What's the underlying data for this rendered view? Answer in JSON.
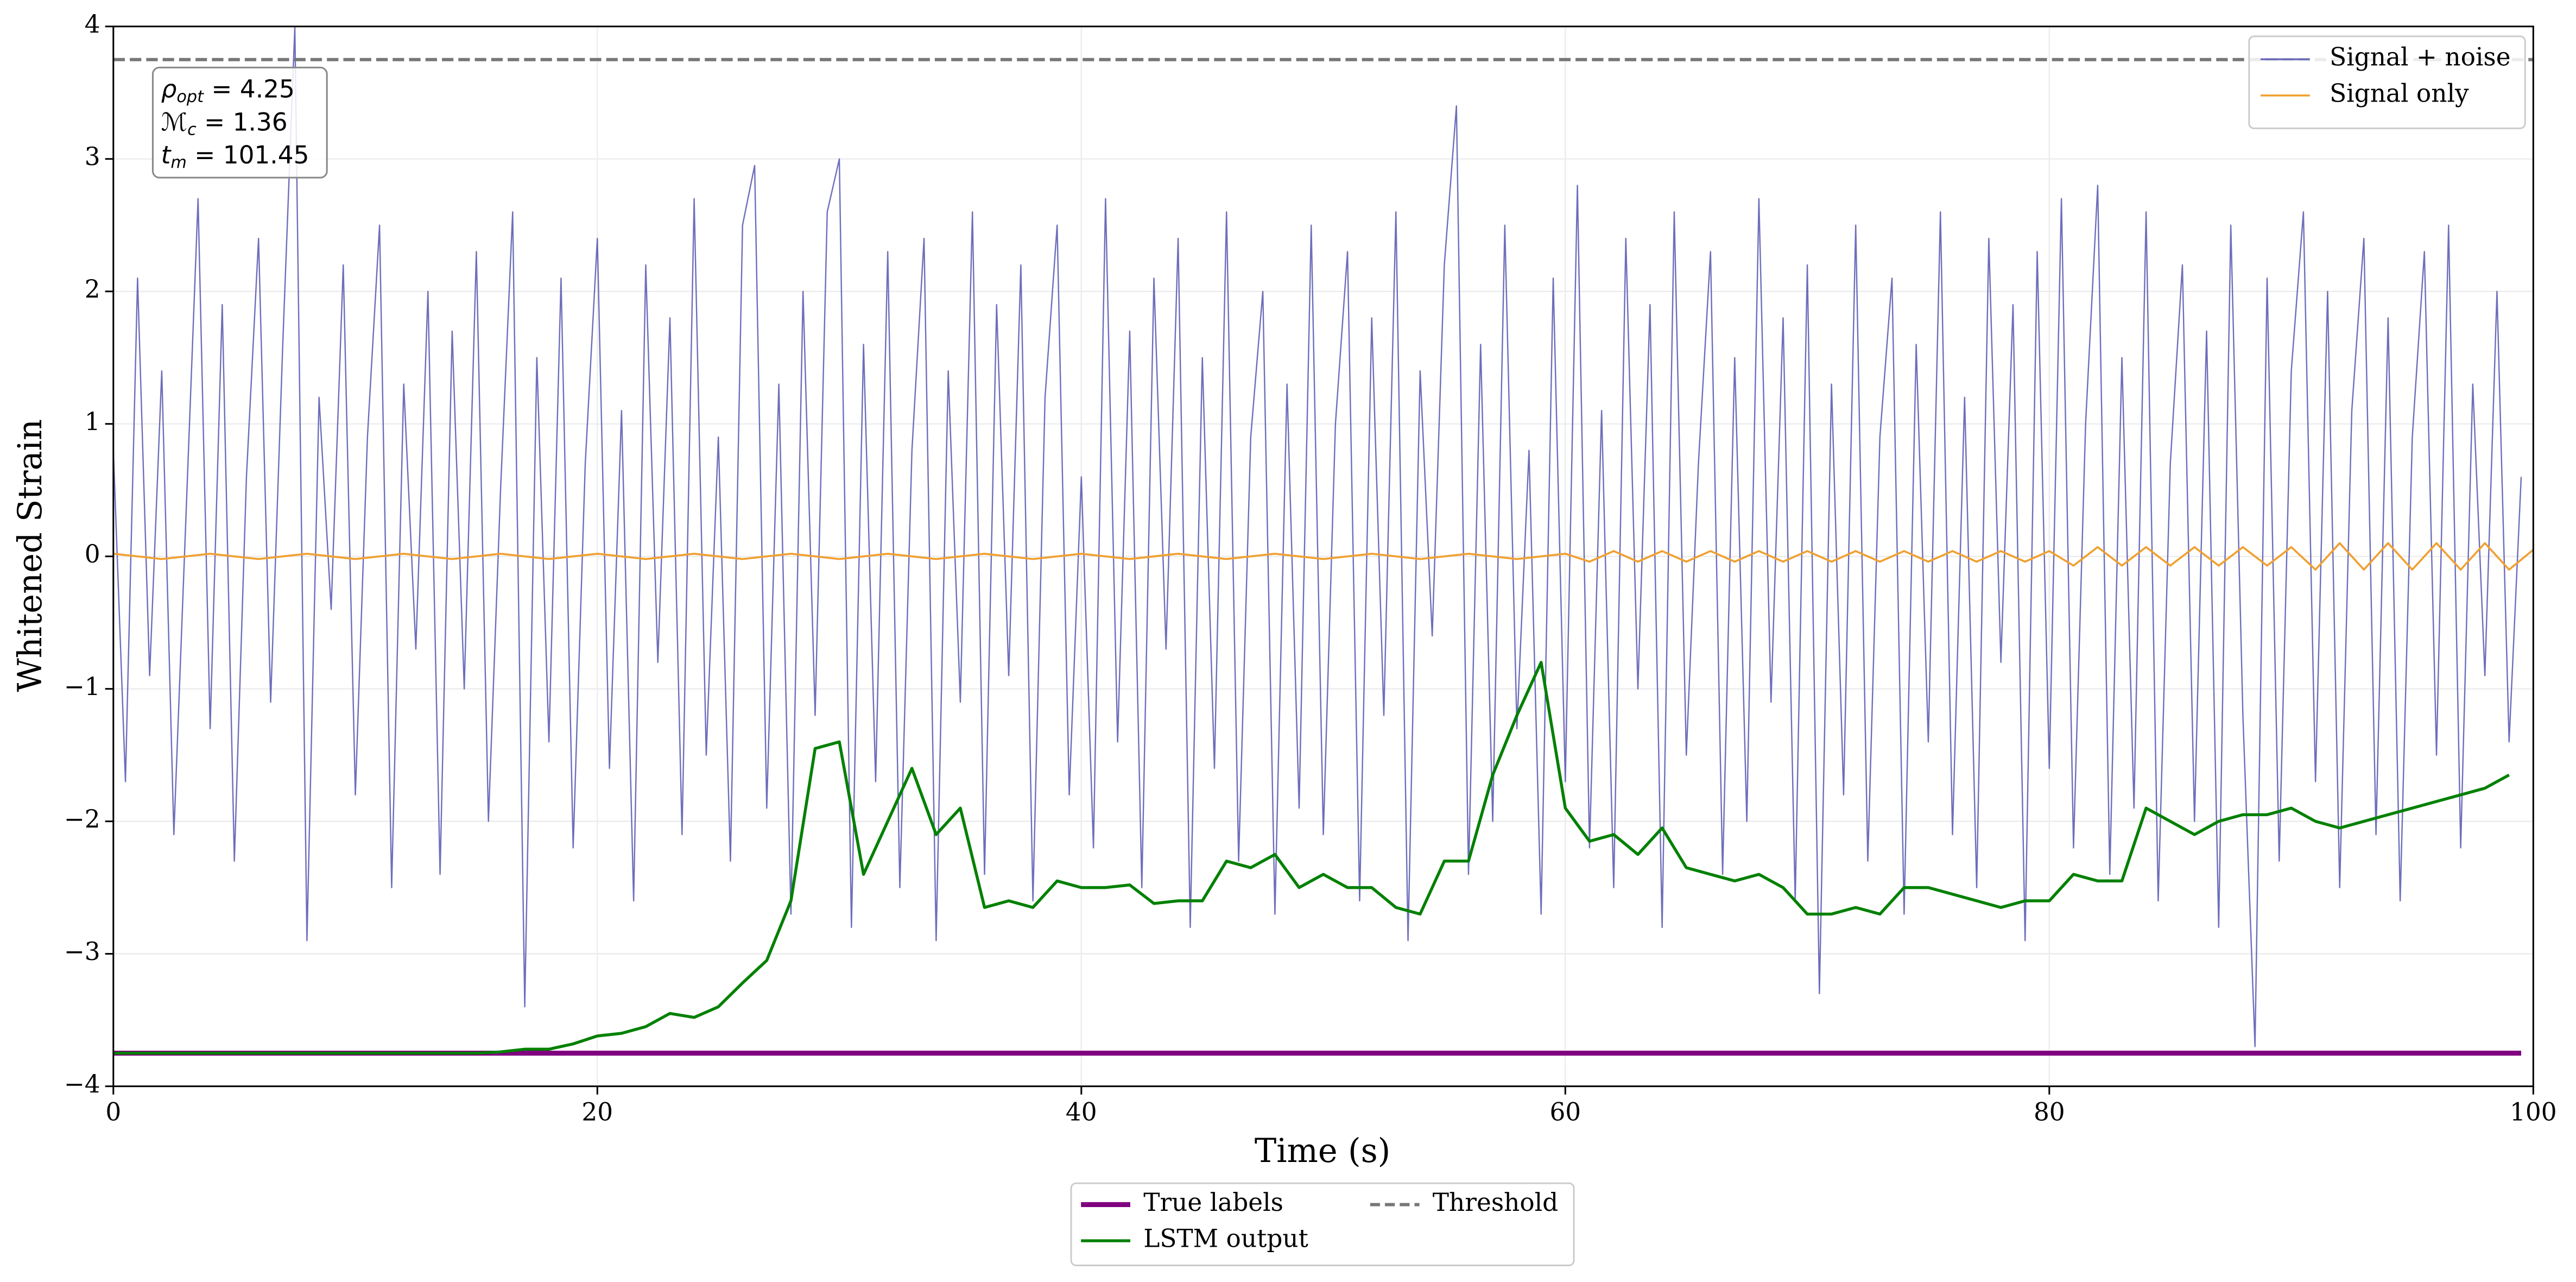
{
  "chart_data": {
    "type": "line",
    "xlabel": "Time (s)",
    "ylabel": "Whitened Strain",
    "xlim": [
      0,
      100
    ],
    "ylim": [
      -4,
      4
    ],
    "xticks": [
      0,
      20,
      40,
      60,
      80,
      100
    ],
    "yticks": [
      {
        "value": -4,
        "label": "−4"
      },
      {
        "value": -3,
        "label": "−3"
      },
      {
        "value": -2,
        "label": "−2"
      },
      {
        "value": -1,
        "label": "−1"
      },
      0,
      1,
      2,
      3,
      4
    ],
    "grid": true,
    "annotation": [
      {
        "var": "ρ",
        "sub": "opt",
        "text": " = 4.25"
      },
      {
        "var": "ℳ",
        "sub": "c",
        "text": " = 1.36"
      },
      {
        "var": "t",
        "sub": "m",
        "text": " = 101.45"
      }
    ],
    "series": [
      {
        "name": "Signal + noise",
        "color": "#5555b0",
        "width": 0.8,
        "opacity": 0.85,
        "dash": false,
        "legend": "upper right",
        "x": [
          0,
          0.5,
          1,
          1.5,
          2,
          2.5,
          3,
          3.5,
          4,
          4.5,
          5,
          5.5,
          6,
          6.5,
          7,
          7.5,
          8,
          8.5,
          9,
          9.5,
          10,
          10.5,
          11,
          11.5,
          12,
          12.5,
          13,
          13.5,
          14,
          14.5,
          15,
          15.5,
          16,
          16.5,
          17,
          17.5,
          18,
          18.5,
          19,
          19.5,
          20,
          20.5,
          21,
          21.5,
          22,
          22.5,
          23,
          23.5,
          24,
          24.5,
          25,
          25.5,
          26,
          26.5,
          27,
          27.5,
          28,
          28.5,
          29,
          29.5,
          30,
          30.5,
          31,
          31.5,
          32,
          32.5,
          33,
          33.5,
          34,
          34.5,
          35,
          35.5,
          36,
          36.5,
          37,
          37.5,
          38,
          38.5,
          39,
          39.5,
          40,
          40.5,
          41,
          41.5,
          42,
          42.5,
          43,
          43.5,
          44,
          44.5,
          45,
          45.5,
          46,
          46.5,
          47,
          47.5,
          48,
          48.5,
          49,
          49.5,
          50,
          50.5,
          51,
          51.5,
          52,
          52.5,
          53,
          53.5,
          54,
          54.5,
          55,
          55.5,
          56,
          56.5,
          57,
          57.5,
          58,
          58.5,
          59,
          59.5,
          60,
          60.5,
          61,
          61.5,
          62,
          62.5,
          63,
          63.5,
          64,
          64.5,
          65,
          65.5,
          66,
          66.5,
          67,
          67.5,
          68,
          68.5,
          69,
          69.5,
          70,
          70.5,
          71,
          71.5,
          72,
          72.5,
          73,
          73.5,
          74,
          74.5,
          75,
          75.5,
          76,
          76.5,
          77,
          77.5,
          78,
          78.5,
          79,
          79.5,
          80,
          80.5,
          81,
          81.5,
          82,
          82.5,
          83,
          83.5,
          84,
          84.5,
          85,
          85.5,
          86,
          86.5,
          87,
          87.5,
          88,
          88.5,
          89,
          89.5,
          90,
          90.5,
          91,
          91.5,
          92,
          92.5,
          93,
          93.5,
          94,
          94.5,
          95,
          95.5,
          96,
          96.5,
          97,
          97.5,
          98,
          98.5,
          99,
          99.5
        ],
        "values": [
          0.8,
          -1.7,
          2.1,
          -0.9,
          1.4,
          -2.1,
          0.3,
          2.7,
          -1.3,
          1.9,
          -2.3,
          0.6,
          2.4,
          -1.1,
          1.6,
          4.0,
          -2.9,
          1.2,
          -0.4,
          2.2,
          -1.8,
          0.9,
          2.5,
          -2.5,
          1.3,
          -0.7,
          2.0,
          -2.4,
          1.7,
          -1.0,
          2.3,
          -2.0,
          0.5,
          2.6,
          -3.4,
          1.5,
          -1.4,
          2.1,
          -2.2,
          0.7,
          2.4,
          -1.6,
          1.1,
          -2.6,
          2.2,
          -0.8,
          1.8,
          -2.1,
          2.7,
          -1.5,
          0.9,
          -2.3,
          2.5,
          2.95,
          -1.9,
          1.3,
          -2.7,
          2.0,
          -1.2,
          2.6,
          3.0,
          -2.8,
          1.6,
          -1.7,
          2.3,
          -2.5,
          0.8,
          2.4,
          -2.9,
          1.4,
          -1.1,
          2.6,
          -2.4,
          1.9,
          -0.9,
          2.2,
          -2.6,
          1.2,
          2.5,
          -1.8,
          0.6,
          -2.2,
          2.7,
          -1.4,
          1.7,
          -2.5,
          2.1,
          -0.7,
          2.4,
          -2.8,
          1.5,
          -1.6,
          2.6,
          -2.3,
          0.9,
          2.0,
          -2.7,
          1.3,
          -1.9,
          2.5,
          -2.1,
          1.0,
          2.3,
          -2.6,
          1.8,
          -1.2,
          2.6,
          -2.9,
          1.4,
          -0.6,
          2.2,
          3.4,
          -2.4,
          1.6,
          -2.0,
          2.5,
          -1.3,
          0.8,
          -2.7,
          2.1,
          -1.7,
          2.8,
          -2.2,
          1.1,
          -2.5,
          2.4,
          -1.0,
          1.9,
          -2.8,
          2.6,
          -1.5,
          0.7,
          2.3,
          -2.4,
          1.5,
          -2.0,
          2.7,
          -1.1,
          1.8,
          -2.6,
          2.2,
          -3.3,
          1.3,
          -1.8,
          2.5,
          -2.3,
          0.9,
          2.1,
          -2.7,
          1.6,
          -1.4,
          2.6,
          -2.1,
          1.2,
          -2.5,
          2.4,
          -0.8,
          1.9,
          -2.9,
          2.3,
          -1.6,
          2.7,
          -2.2,
          1.0,
          2.8,
          -2.4,
          1.5,
          -1.9,
          2.6,
          -2.6,
          0.7,
          2.2,
          -2.0,
          1.7,
          -2.8,
          2.5,
          -1.2,
          -3.7,
          2.1,
          -2.3,
          1.4,
          2.6,
          -1.7,
          2.0,
          -2.5,
          1.1,
          2.4,
          -2.1,
          1.8,
          -2.6,
          0.9,
          2.3,
          -1.5,
          2.5,
          -2.2,
          1.3,
          -0.9,
          2.0,
          -1.4,
          0.6
        ]
      },
      {
        "name": "Signal only",
        "color": "#f0a030",
        "width": 1.2,
        "opacity": 1,
        "dash": false,
        "legend": "upper right",
        "x": [
          0,
          2,
          4,
          6,
          8,
          10,
          12,
          14,
          16,
          18,
          20,
          22,
          24,
          26,
          28,
          30,
          32,
          34,
          36,
          38,
          40,
          42,
          44,
          46,
          48,
          50,
          52,
          54,
          56,
          58,
          60,
          61,
          62,
          63,
          64,
          65,
          66,
          67,
          68,
          69,
          70,
          71,
          72,
          73,
          74,
          75,
          76,
          77,
          78,
          79,
          80,
          81,
          82,
          83,
          84,
          85,
          86,
          87,
          88,
          89,
          90,
          91,
          92,
          93,
          94,
          95,
          96,
          97,
          98,
          99,
          100
        ],
        "values": [
          0.02,
          -0.02,
          0.02,
          -0.02,
          0.02,
          -0.02,
          0.02,
          -0.02,
          0.02,
          -0.02,
          0.02,
          -0.02,
          0.02,
          -0.02,
          0.02,
          -0.02,
          0.02,
          -0.02,
          0.02,
          -0.02,
          0.02,
          -0.02,
          0.02,
          -0.02,
          0.02,
          -0.02,
          0.02,
          -0.02,
          0.02,
          -0.02,
          0.02,
          -0.04,
          0.04,
          -0.04,
          0.04,
          -0.04,
          0.04,
          -0.04,
          0.04,
          -0.04,
          0.04,
          -0.04,
          0.04,
          -0.04,
          0.04,
          -0.04,
          0.04,
          -0.04,
          0.04,
          -0.04,
          0.04,
          -0.07,
          0.07,
          -0.07,
          0.07,
          -0.07,
          0.07,
          -0.07,
          0.07,
          -0.07,
          0.07,
          -0.1,
          0.1,
          -0.1,
          0.1,
          -0.1,
          0.1,
          -0.1,
          0.1,
          -0.1,
          0.05
        ]
      },
      {
        "name": "True labels",
        "color": "#800080",
        "width": 3,
        "opacity": 1,
        "dash": false,
        "legend": "lower center",
        "x": [
          0,
          99.5
        ],
        "values": [
          -3.75,
          -3.75
        ]
      },
      {
        "name": "LSTM output",
        "color": "#008000",
        "width": 1.8,
        "opacity": 1,
        "dash": false,
        "legend": "lower center",
        "x": [
          0,
          1,
          2,
          3,
          4,
          5,
          6,
          7,
          8,
          9,
          10,
          11,
          12,
          13,
          14,
          15,
          16,
          17,
          18,
          19,
          20,
          21,
          22,
          23,
          24,
          25,
          26,
          27,
          28,
          29,
          30,
          31,
          32,
          33,
          34,
          35,
          36,
          37,
          38,
          39,
          40,
          41,
          42,
          43,
          44,
          45,
          46,
          47,
          48,
          49,
          50,
          51,
          52,
          53,
          54,
          55,
          56,
          57,
          58,
          59,
          60,
          61,
          62,
          63,
          64,
          65,
          66,
          67,
          68,
          69,
          70,
          71,
          72,
          73,
          74,
          75,
          76,
          77,
          78,
          79,
          80,
          81,
          82,
          83,
          84,
          85,
          86,
          87,
          88,
          89,
          90,
          91,
          92,
          93,
          94,
          95,
          96,
          97,
          98,
          99
        ],
        "values": [
          -3.75,
          -3.75,
          -3.75,
          -3.75,
          -3.75,
          -3.75,
          -3.75,
          -3.75,
          -3.75,
          -3.75,
          -3.75,
          -3.75,
          -3.75,
          -3.75,
          -3.75,
          -3.75,
          -3.74,
          -3.72,
          -3.72,
          -3.68,
          -3.62,
          -3.6,
          -3.55,
          -3.45,
          -3.48,
          -3.4,
          -3.22,
          -3.05,
          -2.6,
          -1.45,
          -1.4,
          -2.4,
          -2.0,
          -1.6,
          -2.1,
          -1.9,
          -2.65,
          -2.6,
          -2.65,
          -2.45,
          -2.5,
          -2.5,
          -2.48,
          -2.62,
          -2.6,
          -2.6,
          -2.3,
          -2.35,
          -2.25,
          -2.5,
          -2.4,
          -2.5,
          -2.5,
          -2.65,
          -2.7,
          -2.3,
          -2.3,
          -1.65,
          -1.2,
          -0.8,
          -1.9,
          -2.15,
          -2.1,
          -2.25,
          -2.05,
          -2.35,
          -2.4,
          -2.45,
          -2.4,
          -2.5,
          -2.7,
          -2.7,
          -2.65,
          -2.7,
          -2.5,
          -2.5,
          -2.55,
          -2.6,
          -2.65,
          -2.6,
          -2.6,
          -2.4,
          -2.45,
          -2.45,
          -1.9,
          -2.0,
          -2.1,
          -2.0,
          -1.95,
          -1.95,
          -1.9,
          -2.0,
          -2.05,
          -2.0,
          -1.95,
          -1.9,
          -1.85,
          -1.8,
          -1.75,
          -1.65
        ]
      },
      {
        "name": "Threshold",
        "color": "#777777",
        "width": 2,
        "opacity": 1,
        "dash": true,
        "legend": "lower center",
        "x": [
          0,
          100
        ],
        "values": [
          3.75,
          3.75
        ]
      }
    ]
  }
}
